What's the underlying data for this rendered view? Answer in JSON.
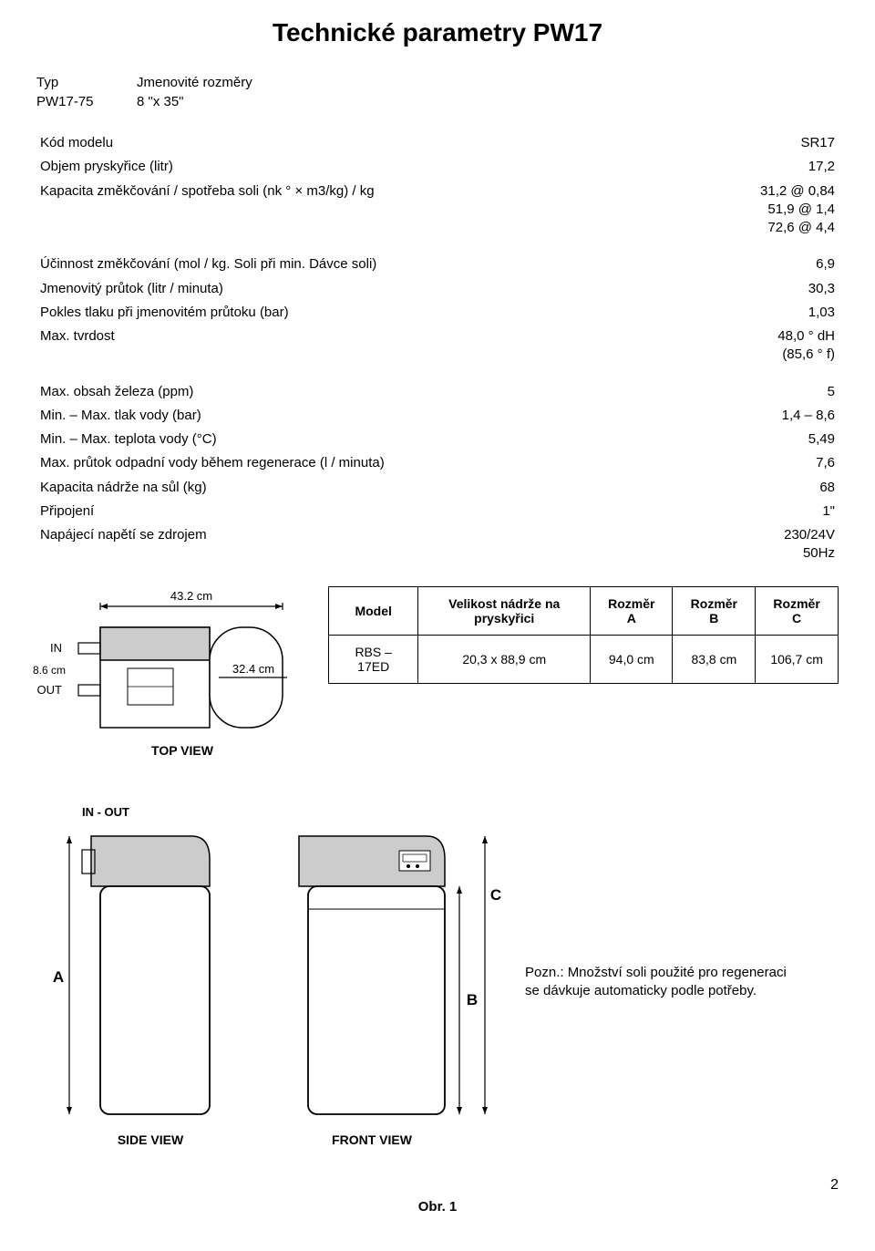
{
  "title": "Technické parametry PW17",
  "typeBlock": {
    "typLabel": "Typ",
    "typValue": "Jmenovité rozměry",
    "modelLabel": "PW17-75",
    "modelValue": "8 \"x 35\""
  },
  "specTable": {
    "rows": [
      {
        "label": "Kód modelu",
        "value": "SR17"
      },
      {
        "label": "Objem pryskyřice (litr)",
        "value": "17,2"
      },
      {
        "label": "Kapacita změkčování / spotřeba soli (nk ° × m3/kg) / kg",
        "value": "31,2 @ 0,84\n51,9 @ 1,4\n72,6 @ 4,4"
      },
      {
        "label": "Účinnost změkčování (mol / kg. Soli při min. Dávce soli)",
        "value": "6,9"
      },
      {
        "label": "Jmenovitý průtok (litr / minuta)",
        "value": "30,3"
      },
      {
        "label": "Pokles tlaku při jmenovitém průtoku (bar)",
        "value": "1,03"
      },
      {
        "label": "Max. tvrdost",
        "value": "48,0 ° dH\n(85,6 ° f)"
      },
      {
        "label": "Max. obsah železa (ppm)",
        "value": "5"
      },
      {
        "label": "Min. – Max. tlak vody (bar)",
        "value": "1,4 – 8,6"
      },
      {
        "label": "Min. – Max. teplota vody (°C)",
        "value": "5,49"
      },
      {
        "label": "Max. průtok odpadní vody během regenerace (l / minuta)",
        "value": "7,6"
      },
      {
        "label": "Kapacita nádrže na sůl (kg)",
        "value": "68"
      },
      {
        "label": "Připojení",
        "value": "1\""
      },
      {
        "label": "Napájecí napětí se zdrojem",
        "value": "230/24V\n50Hz"
      }
    ]
  },
  "topView": {
    "widthLabel": "43.2 cm",
    "inLabel": "IN",
    "outLabel": "OUT",
    "inDim": "8.6 cm",
    "depthLabel": "32.4 cm",
    "caption": "TOP VIEW"
  },
  "dimsTable": {
    "headers": [
      "Model",
      "Velikost nádrže na pryskyřici",
      "Rozměr A",
      "Rozměr B",
      "Rozměr C"
    ],
    "row": [
      "RBS – 17ED",
      "20,3 x 88,9 cm",
      "94,0 cm",
      "83,8 cm",
      "106,7 cm"
    ]
  },
  "views": {
    "sideCaption": "SIDE VIEW",
    "frontCaption": "FRONT VIEW",
    "inOutLabel": "IN - OUT",
    "dimA": "A",
    "dimB": "B",
    "dimC": "C"
  },
  "note": "Pozn.: Množství soli použité pro regeneraci se dávkuje automaticky podle potřeby.",
  "figCaption": "Obr. 1",
  "pageNum": "2",
  "colors": {
    "text": "#000000",
    "line": "#000000",
    "fillLight": "#ffffff",
    "fillGrey": "#cccccc"
  }
}
